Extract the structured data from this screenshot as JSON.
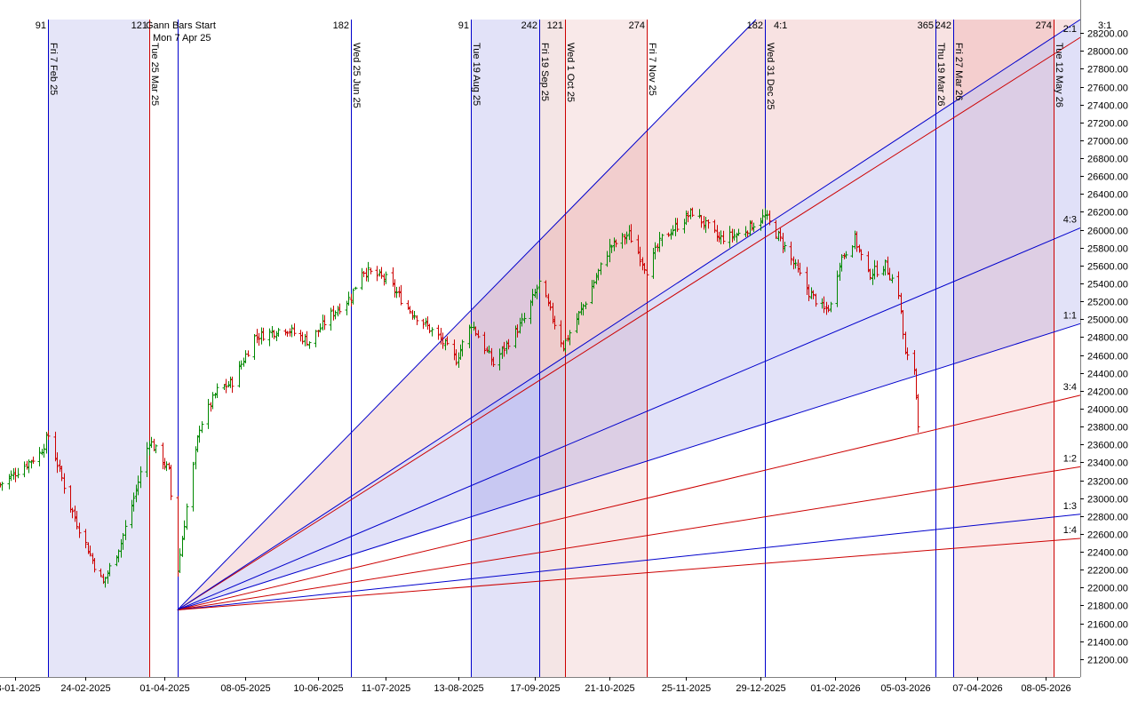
{
  "chart_data": {
    "type": "bar",
    "subtype": "ohlc-with-gann-fan-and-time-cycles",
    "title": "",
    "xlabel": "",
    "ylabel": "",
    "ylim": [
      21000,
      28350
    ],
    "x_start": "2025-01-16",
    "x_end": "2026-05-24",
    "y_ticks": [
      21200,
      21400,
      21600,
      21800,
      22000,
      22200,
      22400,
      22600,
      22800,
      23000,
      23200,
      23400,
      23600,
      23800,
      24000,
      24200,
      24400,
      24600,
      24800,
      25000,
      25200,
      25400,
      25600,
      25800,
      26000,
      26200,
      26400,
      26600,
      26800,
      27000,
      27200,
      27400,
      27600,
      27800,
      28000,
      28200
    ],
    "x_ticks": [
      {
        "date": "2025-01-23",
        "label": "23-01-2025"
      },
      {
        "date": "2025-02-24",
        "label": "24-02-2025"
      },
      {
        "date": "2025-04-01",
        "label": "01-04-2025"
      },
      {
        "date": "2025-05-08",
        "label": "08-05-2025"
      },
      {
        "date": "2025-06-10",
        "label": "10-06-2025"
      },
      {
        "date": "2025-07-11",
        "label": "11-07-2025"
      },
      {
        "date": "2025-08-13",
        "label": "13-08-2025"
      },
      {
        "date": "2025-09-17",
        "label": "17-09-2025"
      },
      {
        "date": "2025-10-21",
        "label": "21-10-2025"
      },
      {
        "date": "2025-11-25",
        "label": "25-11-2025"
      },
      {
        "date": "2025-12-29",
        "label": "29-12-2025"
      },
      {
        "date": "2026-02-01",
        "label": "01-02-2026"
      },
      {
        "date": "2026-03-05",
        "label": "05-03-2026"
      },
      {
        "date": "2026-04-07",
        "label": "07-04-2026"
      },
      {
        "date": "2026-05-08",
        "label": "08-05-2026"
      }
    ],
    "gann": {
      "start_label": "Gann Bars Start",
      "start_date_label": "Mon 7 Apr 25",
      "origin": {
        "date": "2025-04-07",
        "price": 21750
      },
      "angles": [
        {
          "label": "2:1",
          "end_price": 28150,
          "color": "#cc0000"
        },
        {
          "label": "4:3",
          "end_price": 26020,
          "color": "#0000cc"
        },
        {
          "label": "1:1",
          "end_price": 24950,
          "color": "#0000cc"
        },
        {
          "label": "3:4",
          "end_price": 24150,
          "color": "#cc0000"
        },
        {
          "label": "1:2",
          "end_price": 23350,
          "color": "#cc0000"
        },
        {
          "label": "1:3",
          "end_price": 22820,
          "color": "#0000cc"
        },
        {
          "label": "1:4",
          "end_price": 22550,
          "color": "#cc0000"
        }
      ],
      "steep_lines": [
        {
          "label": "4:1",
          "end_date": "2025-12-27",
          "end_price": 28350,
          "color": "#0000cc"
        },
        {
          "label": "3:1",
          "end_date": "2026-05-24",
          "end_price": 28350,
          "color": "#0000cc"
        }
      ],
      "fills": [
        {
          "upper": "4:1",
          "lower": "3:1",
          "color": "#cc2222",
          "opacity": 0.13
        },
        {
          "upper": "3:1",
          "lower": "2:1",
          "color": "#2222cc",
          "opacity": 0.15
        },
        {
          "upper": "2:1",
          "lower": "4:3",
          "color": "#2222cc",
          "opacity": 0.14
        },
        {
          "upper": "4:3",
          "lower": "1:1",
          "color": "#2222cc",
          "opacity": 0.13
        },
        {
          "upper": "1:1",
          "lower": "3:4",
          "color": "#ffffff",
          "opacity": 0.0
        }
      ]
    },
    "time_cycles": [
      {
        "date": "2025-02-07",
        "label": "Fri 7 Feb 25",
        "count": "91",
        "color": "#0000cc"
      },
      {
        "date": "2025-03-25",
        "label": "Tue 25 Mar 25",
        "count": "121",
        "color": "#cc0000"
      },
      {
        "date": "2025-06-25",
        "label": "Wed 25 Jun 25",
        "count": "182",
        "color": "#0000cc"
      },
      {
        "date": "2025-08-19",
        "label": "Tue 19 Aug 25",
        "count": "91",
        "color": "#0000cc"
      },
      {
        "date": "2025-09-19",
        "label": "Fri 19 Sep 25",
        "count": "242",
        "color": "#0000cc"
      },
      {
        "date": "2025-10-01",
        "label": "Wed 1 Oct 25",
        "count": "121",
        "color": "#cc0000"
      },
      {
        "date": "2025-11-07",
        "label": "Fri 7 Nov 25",
        "count": "274",
        "color": "#cc0000"
      },
      {
        "date": "2025-12-31",
        "label": "Wed 31 Dec 25",
        "count": "182",
        "color": "#0000cc"
      },
      {
        "date": "2026-03-19",
        "label": "Thu 19 Mar 26",
        "count": "365",
        "color": "#0000cc"
      },
      {
        "date": "2026-03-27",
        "label": "Fri 27 Mar 26",
        "count": "242",
        "color": "#0000cc"
      },
      {
        "date": "2026-05-12",
        "label": "Tue 12 May 26",
        "count": "274",
        "color": "#cc0000"
      }
    ],
    "cycle_bands": [
      {
        "start": "2025-02-07",
        "end": "2025-03-25",
        "color": "#3333cc",
        "opacity": 0.13
      },
      {
        "start": "2025-08-19",
        "end": "2025-09-19",
        "color": "#3333cc",
        "opacity": 0.14
      },
      {
        "start": "2025-09-19",
        "end": "2025-10-01",
        "color": "#aa3333",
        "opacity": 0.13
      },
      {
        "start": "2025-10-01",
        "end": "2025-11-07",
        "color": "#cc3333",
        "opacity": 0.11
      },
      {
        "start": "2026-03-27",
        "end": "2026-05-12",
        "color": "#dd3333",
        "opacity": 0.11
      }
    ],
    "price_anchors": [
      {
        "date": "2025-01-16",
        "price": 23150
      },
      {
        "date": "2025-02-03",
        "price": 23500
      },
      {
        "date": "2025-02-07",
        "price": 23700
      },
      {
        "date": "2025-02-17",
        "price": 22900
      },
      {
        "date": "2025-02-28",
        "price": 22250
      },
      {
        "date": "2025-03-04",
        "price": 22050
      },
      {
        "date": "2025-03-12",
        "price": 22500
      },
      {
        "date": "2025-03-18",
        "price": 23000
      },
      {
        "date": "2025-03-25",
        "price": 23650
      },
      {
        "date": "2025-04-03",
        "price": 23300
      },
      {
        "date": "2025-04-07",
        "price": 22200
      },
      {
        "date": "2025-04-11",
        "price": 22900
      },
      {
        "date": "2025-04-17",
        "price": 23800
      },
      {
        "date": "2025-04-25",
        "price": 24200
      },
      {
        "date": "2025-05-02",
        "price": 24300
      },
      {
        "date": "2025-05-12",
        "price": 24800
      },
      {
        "date": "2025-05-26",
        "price": 24900
      },
      {
        "date": "2025-06-06",
        "price": 24750
      },
      {
        "date": "2025-06-16",
        "price": 25050
      },
      {
        "date": "2025-06-25",
        "price": 25250
      },
      {
        "date": "2025-06-30",
        "price": 25550
      },
      {
        "date": "2025-07-11",
        "price": 25450
      },
      {
        "date": "2025-07-22",
        "price": 25100
      },
      {
        "date": "2025-08-04",
        "price": 24800
      },
      {
        "date": "2025-08-12",
        "price": 24550
      },
      {
        "date": "2025-08-19",
        "price": 24950
      },
      {
        "date": "2025-08-29",
        "price": 24500
      },
      {
        "date": "2025-09-12",
        "price": 25000
      },
      {
        "date": "2025-09-19",
        "price": 25400
      },
      {
        "date": "2025-09-30",
        "price": 24700
      },
      {
        "date": "2025-10-10",
        "price": 25200
      },
      {
        "date": "2025-10-21",
        "price": 25800
      },
      {
        "date": "2025-10-30",
        "price": 25950
      },
      {
        "date": "2025-11-07",
        "price": 25550
      },
      {
        "date": "2025-11-14",
        "price": 25900
      },
      {
        "date": "2025-11-28",
        "price": 26200
      },
      {
        "date": "2025-12-10",
        "price": 25900
      },
      {
        "date": "2025-12-19",
        "price": 25950
      },
      {
        "date": "2025-12-31",
        "price": 26150
      },
      {
        "date": "2026-01-08",
        "price": 25850
      },
      {
        "date": "2026-01-20",
        "price": 25300
      },
      {
        "date": "2026-01-27",
        "price": 25100
      },
      {
        "date": "2026-01-30",
        "price": 25150
      },
      {
        "date": "2026-02-03",
        "price": 25650
      },
      {
        "date": "2026-02-10",
        "price": 25900
      },
      {
        "date": "2026-02-16",
        "price": 25500
      },
      {
        "date": "2026-02-24",
        "price": 25600
      },
      {
        "date": "2026-03-02",
        "price": 25300
      },
      {
        "date": "2026-03-05",
        "price": 24600
      },
      {
        "date": "2026-03-09",
        "price": 24450
      },
      {
        "date": "2026-03-11",
        "price": 23850
      }
    ]
  }
}
